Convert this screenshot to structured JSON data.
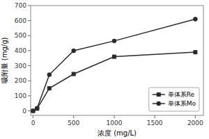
{
  "chart_data": {
    "type": "line",
    "xlabel": "浓度 (mg/L)",
    "ylabel": "吸附量 (mg/g)",
    "x": [
      0,
      50,
      200,
      500,
      1000,
      2000
    ],
    "series": [
      {
        "name": "单体系Re",
        "color": "#2a2a2a",
        "marker": "square",
        "values": [
          0,
          15,
          150,
          245,
          360,
          390
        ]
      },
      {
        "name": "单体系Mo",
        "color": "#2a2a2a",
        "marker": "circle",
        "values": [
          0,
          18,
          240,
          400,
          465,
          610
        ]
      }
    ],
    "xlim": [
      -30,
      2100
    ],
    "ylim": [
      -30,
      700
    ],
    "xticks": [
      0,
      500,
      1000,
      1500,
      2000
    ],
    "yticks": [
      0,
      100,
      200,
      300,
      400,
      500,
      600,
      700
    ],
    "grid": false,
    "legend": "lower right"
  }
}
